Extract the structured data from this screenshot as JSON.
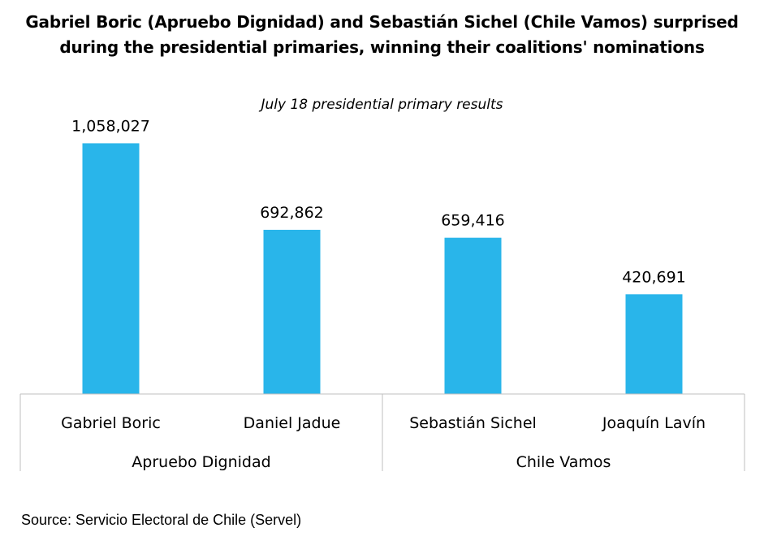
{
  "chart_data": {
    "type": "bar",
    "title": "Gabriel Boric (Apruebo Dignidad) and Sebastián Sichel (Chile Vamos) surprised during the presidential primaries, winning their coalitions' nominations",
    "subtitle": "July 18 presidential primary results",
    "categories": [
      "Gabriel Boric",
      "Daniel Jadue",
      "Sebastián Sichel",
      "Joaquín Lavín"
    ],
    "values": [
      1058027,
      692862,
      659416,
      420691
    ],
    "data_labels": [
      "1,058,027",
      "692,862",
      "659,416",
      "420,691"
    ],
    "groups": [
      {
        "name": "Apruebo Dignidad",
        "members": [
          "Gabriel Boric",
          "Daniel Jadue"
        ]
      },
      {
        "name": "Chile Vamos",
        "members": [
          "Sebastián Sichel",
          "Joaquín Lavín"
        ]
      }
    ],
    "ylim": [
      0,
      1200000
    ],
    "grid": false,
    "legend": "none",
    "bar_color": "#29B5EA"
  },
  "source": "Source: Servicio Electoral de Chile (Servel)"
}
